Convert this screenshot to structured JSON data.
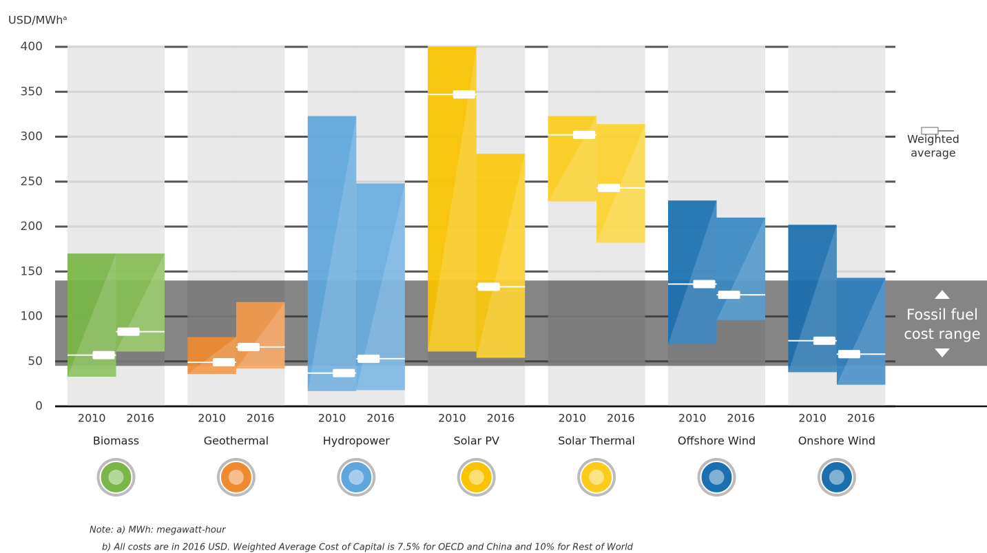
{
  "chart_data": {
    "type": "range_bar",
    "y_label": "USD/MWhᵃ",
    "ylim": [
      0,
      400
    ],
    "yticks": [
      0,
      50,
      100,
      150,
      200,
      250,
      300,
      350,
      400
    ],
    "grid": true,
    "groups": [
      {
        "name": "Biomass",
        "bars": [
          {
            "label": "2010",
            "low": 33,
            "high": 170,
            "average": 57,
            "color": "#7ab648"
          },
          {
            "label": "2016",
            "low": 61,
            "high": 170,
            "average": 83,
            "color": "#86bd55"
          }
        ]
      },
      {
        "name": "Geothermal",
        "bars": [
          {
            "label": "2010",
            "low": 36,
            "high": 77,
            "average": 49,
            "color": "#f08a30"
          },
          {
            "label": "2016",
            "low": 42,
            "high": 116,
            "average": 66,
            "color": "#f39a4e"
          }
        ]
      },
      {
        "name": "Hydropower",
        "bars": [
          {
            "label": "2010",
            "low": 17,
            "high": 323,
            "average": 37,
            "color": "#5ea6dc"
          },
          {
            "label": "2016",
            "low": 18,
            "high": 248,
            "average": 53,
            "color": "#68acdf"
          }
        ]
      },
      {
        "name": "Solar PV",
        "bars": [
          {
            "label": "2010",
            "low": 61,
            "high": 400,
            "average": 347,
            "color": "#f9c300"
          },
          {
            "label": "2016",
            "low": 54,
            "high": 281,
            "average": 133,
            "color": "#fbc90f"
          }
        ]
      },
      {
        "name": "Solar Thermal",
        "bars": [
          {
            "label": "2010",
            "low": 228,
            "high": 323,
            "average": 302,
            "color": "#fbcc1c"
          },
          {
            "label": "2016",
            "low": 182,
            "high": 314,
            "average": 243,
            "color": "#fcd22e"
          }
        ]
      },
      {
        "name": "Offshore Wind",
        "bars": [
          {
            "label": "2010",
            "low": 69,
            "high": 229,
            "average": 136,
            "color": "#1a70b0"
          },
          {
            "label": "2016",
            "low": 96,
            "high": 210,
            "average": 124,
            "color": "#3a89c3"
          }
        ]
      },
      {
        "name": "Onshore Wind",
        "bars": [
          {
            "label": "2010",
            "low": 38,
            "high": 202,
            "average": 73,
            "color": "#1a6fae"
          },
          {
            "label": "2016",
            "low": 24,
            "high": 143,
            "average": 58,
            "color": "#2e7fbd"
          }
        ]
      }
    ],
    "fossil_range": {
      "low": 45,
      "high": 140,
      "label": [
        "Fossil fuel",
        "cost range"
      ]
    },
    "weighted_average_label": [
      "Weighted",
      "average"
    ],
    "notes": [
      "Note: a) MWh: megawatt-hour",
      "b) All costs are in 2016 USD. Weighted Average Cost of Capital is 7.5% for OECD and China and 10% for Rest of World"
    ]
  }
}
